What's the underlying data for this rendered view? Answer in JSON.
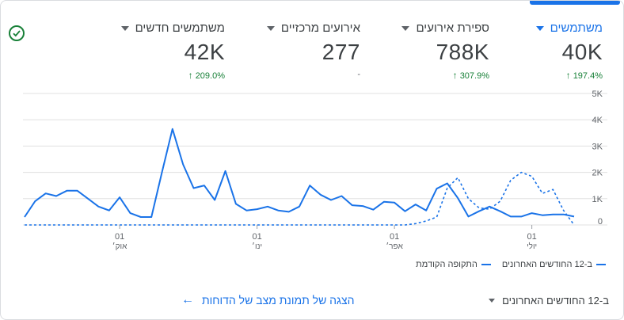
{
  "metrics": [
    {
      "label": "משתמשים",
      "value": "40K",
      "change": "197.4%",
      "active": true
    },
    {
      "label": "ספירת אירועים",
      "value": "788K",
      "change": "307.9%",
      "active": false
    },
    {
      "label": "אירועים מרכזיים",
      "value": "277",
      "change": "-",
      "active": false
    },
    {
      "label": "משתמשים חדשים",
      "value": "42K",
      "change": "209.0%",
      "active": false
    }
  ],
  "legend": {
    "current": "ב-12 החודשים האחרונים",
    "previous": "התקופה הקודמת"
  },
  "footer": {
    "range_label": "ב-12 החודשים האחרונים",
    "link_label": "הצגה של תמונת מצב של הדוחות"
  },
  "colors": {
    "accent": "#1a73e8",
    "positive": "#188038"
  },
  "icons": {
    "status": "check-circle-icon",
    "link_arrow": "arrow-left-icon",
    "dropdown": "caret-down-icon"
  },
  "chart_data": {
    "type": "line",
    "y_ticks": [
      "5K",
      "4K",
      "3K",
      "2K",
      "1K",
      "0"
    ],
    "ylim": [
      0,
      5000
    ],
    "x_ticks": [
      {
        "day": "01",
        "month": "אוק׳",
        "index": 9
      },
      {
        "day": "01",
        "month": "ינו׳",
        "index": 22
      },
      {
        "day": "01",
        "month": "אפר׳",
        "index": 35
      },
      {
        "day": "01",
        "month": "יולי",
        "index": 48
      }
    ],
    "series": [
      {
        "name": "ב-12 החודשים האחרונים",
        "style": "solid",
        "values": [
          300,
          900,
          1200,
          1100,
          1300,
          1300,
          1000,
          700,
          550,
          1050,
          450,
          300,
          300,
          2000,
          3650,
          2300,
          1400,
          1500,
          950,
          2050,
          800,
          550,
          600,
          700,
          550,
          500,
          700,
          1500,
          1150,
          950,
          1100,
          750,
          720,
          580,
          880,
          850,
          520,
          780,
          550,
          1380,
          1580,
          1020,
          320,
          520,
          700,
          520,
          320,
          320,
          450,
          370,
          400,
          400,
          320
        ]
      },
      {
        "name": "התקופה הקודמת",
        "style": "dashed",
        "values": [
          0,
          0,
          0,
          0,
          0,
          0,
          0,
          0,
          0,
          0,
          0,
          0,
          0,
          0,
          0,
          0,
          0,
          0,
          0,
          0,
          0,
          0,
          0,
          0,
          0,
          0,
          0,
          0,
          0,
          0,
          0,
          0,
          0,
          0,
          0,
          0,
          0,
          50,
          150,
          300,
          1400,
          1800,
          1000,
          650,
          600,
          900,
          1700,
          2000,
          1850,
          1200,
          1350,
          550,
          0
        ]
      }
    ]
  }
}
